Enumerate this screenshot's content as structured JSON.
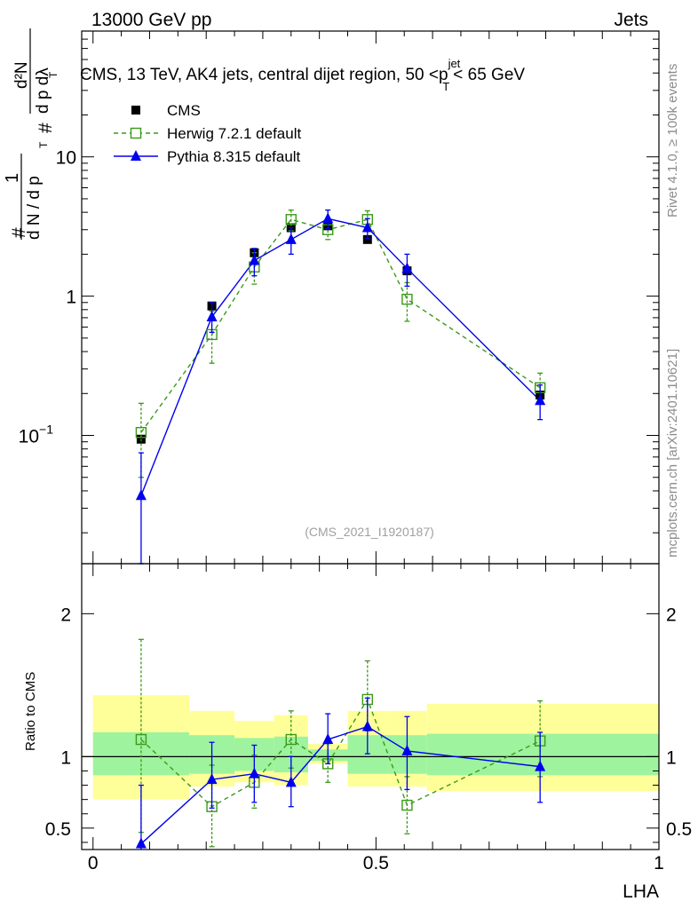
{
  "header": {
    "left": "13000 GeV pp",
    "right": "Jets"
  },
  "side_labels": {
    "rivet": "Rivet 4.1.0, ≥ 100k events",
    "mcplots": "mcplots.cern.ch [arXiv:2401.10621]"
  },
  "chart_data": [
    {
      "type": "scatter",
      "title": "CMS, 13 TeV, AK4 jets, central dijet region, 50 <p_T^{jet}< 65 GeV",
      "title_parts": {
        "pre": "CMS, 13 TeV, AK4 jets, central dijet region, 50 <p",
        "sup": "jet",
        "sub": "T",
        "post": "< 65 GeV"
      },
      "analysis_tag": "(CMS_2021_I1920187)",
      "yscale": "log",
      "ylim": [
        0.012,
        80
      ],
      "xlim": [
        -0.02,
        1.0
      ],
      "yticks": [
        {
          "value": 0.1,
          "label": "10",
          "exp": "−1"
        },
        {
          "value": 1,
          "label": "1",
          "exp": ""
        },
        {
          "value": 10,
          "label": "10",
          "exp": ""
        }
      ],
      "ylabel": {
        "frac1_num": "1",
        "frac1_den": "d N / d p",
        "frac2_num": "d²N",
        "frac2_den": "d p dλ",
        "hash": "#",
        "sub": "T"
      },
      "legend": [
        {
          "name": "CMS",
          "marker": "square-filled",
          "color": "#000000"
        },
        {
          "name": "Herwig 7.2.1 default",
          "marker": "square-open",
          "color": "#3a9a1a"
        },
        {
          "name": "Pythia 8.315 default",
          "marker": "triangle-filled",
          "color": "#0000ee"
        }
      ],
      "series": [
        {
          "name": "CMS",
          "x": [
            0.085,
            0.21,
            0.285,
            0.35,
            0.415,
            0.485,
            0.555,
            0.79
          ],
          "y": [
            0.094,
            0.85,
            2.05,
            3.1,
            3.2,
            2.55,
            1.52,
            0.195
          ],
          "xerr": [
            [
              0.0,
              0.17
            ],
            [
              0.17,
              0.25
            ],
            [
              0.25,
              0.32
            ],
            [
              0.32,
              0.38
            ],
            [
              0.38,
              0.45
            ],
            [
              0.45,
              0.52
            ],
            [
              0.52,
              0.59
            ],
            [
              0.59,
              1.0
            ]
          ],
          "yerr_lo": [
            0.088,
            0.8,
            1.95,
            3.0,
            3.1,
            2.45,
            1.45,
            0.18
          ],
          "yerr_hi": [
            0.1,
            0.9,
            2.15,
            3.2,
            3.3,
            2.65,
            1.6,
            0.21
          ]
        },
        {
          "name": "Herwig 7.2.1 default",
          "x": [
            0.085,
            0.21,
            0.285,
            0.35,
            0.415,
            0.485,
            0.555,
            0.79
          ],
          "y": [
            0.105,
            0.53,
            1.62,
            3.55,
            3.0,
            3.55,
            0.95,
            0.22
          ],
          "yerr_lo": [
            0.05,
            0.33,
            1.22,
            2.95,
            2.55,
            3.0,
            0.66,
            0.17
          ],
          "yerr_hi": [
            0.17,
            0.78,
            2.05,
            4.15,
            3.45,
            4.1,
            1.25,
            0.28
          ]
        },
        {
          "name": "Pythia 8.315 default",
          "x": [
            0.085,
            0.21,
            0.285,
            0.35,
            0.415,
            0.485,
            0.555,
            0.79
          ],
          "y": [
            0.037,
            0.71,
            1.8,
            2.55,
            3.6,
            3.1,
            1.58,
            0.178
          ],
          "yerr_lo": [
            0.005,
            0.55,
            1.4,
            2.0,
            3.05,
            2.6,
            1.18,
            0.13
          ],
          "yerr_hi": [
            0.075,
            0.9,
            2.2,
            3.1,
            4.15,
            3.6,
            2.0,
            0.23
          ]
        }
      ]
    },
    {
      "type": "scatter",
      "ylabel": "Ratio to CMS",
      "xlabel": "LHA",
      "ylim": [
        0.35,
        2.35
      ],
      "xlim": [
        -0.02,
        1.0
      ],
      "xticks": [
        {
          "value": 0,
          "label": "0"
        },
        {
          "value": 0.5,
          "label": "0.5"
        },
        {
          "value": 1,
          "label": "1"
        }
      ],
      "yticks": [
        {
          "value": 0.5,
          "label": "0.5"
        },
        {
          "value": 1,
          "label": "1"
        },
        {
          "value": 2,
          "label": "2"
        }
      ],
      "bands": [
        {
          "x0": 0.0,
          "x1": 0.17,
          "yellow": [
            0.7,
            1.43
          ],
          "green": [
            0.87,
            1.17
          ]
        },
        {
          "x0": 0.17,
          "x1": 0.25,
          "yellow": [
            0.79,
            1.32
          ],
          "green": [
            0.88,
            1.15
          ]
        },
        {
          "x0": 0.25,
          "x1": 0.32,
          "yellow": [
            0.82,
            1.25
          ],
          "green": [
            0.9,
            1.13
          ]
        },
        {
          "x0": 0.32,
          "x1": 0.38,
          "yellow": [
            0.8,
            1.29
          ],
          "green": [
            0.89,
            1.14
          ]
        },
        {
          "x0": 0.38,
          "x1": 0.45,
          "yellow": [
            0.95,
            1.09
          ],
          "green": [
            0.97,
            1.05
          ]
        },
        {
          "x0": 0.45,
          "x1": 0.52,
          "yellow": [
            0.79,
            1.32
          ],
          "green": [
            0.88,
            1.15
          ]
        },
        {
          "x0": 0.52,
          "x1": 0.59,
          "yellow": [
            0.79,
            1.32
          ],
          "green": [
            0.88,
            1.15
          ]
        },
        {
          "x0": 0.59,
          "x1": 1.0,
          "yellow": [
            0.76,
            1.37
          ],
          "green": [
            0.87,
            1.16
          ]
        }
      ],
      "series": [
        {
          "name": "Herwig 7.2.1 default",
          "x": [
            0.085,
            0.21,
            0.285,
            0.35,
            0.415,
            0.485,
            0.555,
            0.79
          ],
          "y": [
            1.12,
            0.65,
            0.82,
            1.12,
            0.95,
            1.4,
            0.66,
            1.11
          ],
          "yerr_lo": [
            0.47,
            0.37,
            0.64,
            0.92,
            0.82,
            1.18,
            0.46,
            0.86
          ],
          "yerr_hi": [
            1.82,
            0.94,
            1.01,
            1.32,
            1.09,
            1.67,
            0.86,
            1.39
          ]
        },
        {
          "name": "Pythia 8.315 default",
          "x": [
            0.085,
            0.21,
            0.285,
            0.35,
            0.415,
            0.485,
            0.555,
            0.79
          ],
          "y": [
            0.39,
            0.84,
            0.88,
            0.82,
            1.12,
            1.21,
            1.04,
            0.93
          ],
          "yerr_lo": [
            0.06,
            0.64,
            0.68,
            0.65,
            0.95,
            1.02,
            0.77,
            0.68
          ],
          "yerr_hi": [
            0.8,
            1.1,
            1.08,
            1.0,
            1.3,
            1.41,
            1.28,
            1.17
          ]
        }
      ]
    }
  ]
}
